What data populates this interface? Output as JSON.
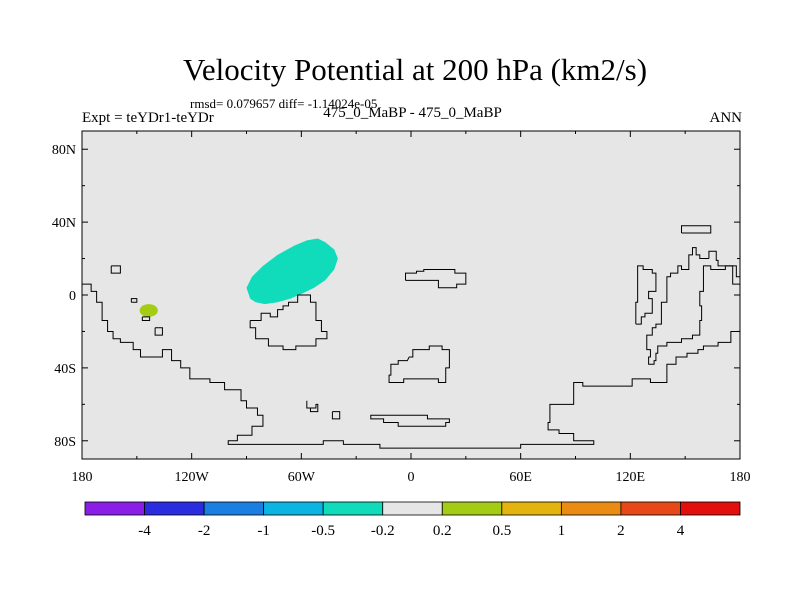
{
  "chart_data": {
    "type": "map-contour",
    "title": "Velocity Potential at 200 hPa (km2/s)",
    "stats_line": "rmsd= 0.079657 diff= -1.14024e-05",
    "left_label": "Expt = teYDr1-teYDr",
    "center_label": "475_0_MaBP - 475_0_MaBP",
    "right_label": "ANN",
    "projection": "cylindrical-equidistant",
    "xlim": [
      -180,
      180
    ],
    "ylim": [
      -90,
      90
    ],
    "x_ticks": [
      {
        "value": -180,
        "label": "180"
      },
      {
        "value": -120,
        "label": "120W"
      },
      {
        "value": -60,
        "label": "60W"
      },
      {
        "value": 0,
        "label": "0"
      },
      {
        "value": 60,
        "label": "60E"
      },
      {
        "value": 120,
        "label": "120E"
      },
      {
        "value": 180,
        "label": "180"
      }
    ],
    "y_ticks": [
      {
        "value": 80,
        "label": "80N"
      },
      {
        "value": 40,
        "label": "40N"
      },
      {
        "value": 0,
        "label": "0"
      },
      {
        "value": -40,
        "label": "40S"
      },
      {
        "value": -80,
        "label": "80S"
      }
    ],
    "background_color": "#e6e6e6",
    "anomaly_regions": [
      {
        "name": "",
        "bin": "-0.5 to -0.2",
        "color": "#10dcbc",
        "polygon": [
          [
            -88,
            -2
          ],
          [
            -90,
            4
          ],
          [
            -87,
            10
          ],
          [
            -81,
            16
          ],
          [
            -73,
            22
          ],
          [
            -64,
            27
          ],
          [
            -57,
            30
          ],
          [
            -51,
            31
          ],
          [
            -47,
            29
          ],
          [
            -42,
            25
          ],
          [
            -40,
            20
          ],
          [
            -42,
            14
          ],
          [
            -47,
            8
          ],
          [
            -53,
            4
          ],
          [
            -59,
            1
          ],
          [
            -66,
            -2
          ],
          [
            -73,
            -4
          ],
          [
            -80,
            -5
          ],
          [
            -85,
            -4
          ]
        ]
      },
      {
        "name": "",
        "bin": "0.2 to 0.5",
        "color": "#a5cc14",
        "ellipse": {
          "cx": -143.5,
          "cy": -8.5,
          "rx": 5,
          "ry": 3.5
        }
      }
    ],
    "colorbar": {
      "colors": [
        "#8a1de6",
        "#2b2be0",
        "#1a7fe0",
        "#0ab4e3",
        "#10dcbc",
        "#e6e6e6",
        "#a5cc14",
        "#e4b40e",
        "#ea8c14",
        "#e64818",
        "#e30e0e"
      ],
      "tick_labels": [
        "-4",
        "-2",
        "-1",
        "-0.5",
        "-0.2",
        "0.2",
        "0.5",
        "1",
        "2",
        "4"
      ]
    },
    "coastlines": [
      [
        [
          -180,
          6
        ],
        [
          -175,
          6
        ],
        [
          -175,
          2
        ],
        [
          -172,
          2
        ],
        [
          -172,
          -4
        ],
        [
          -169,
          -4
        ],
        [
          -169,
          -14
        ],
        [
          -166,
          -14
        ],
        [
          -166,
          -20
        ],
        [
          -163,
          -20
        ],
        [
          -163,
          -24
        ],
        [
          -159,
          -24
        ],
        [
          -159,
          -26
        ],
        [
          -152,
          -26
        ],
        [
          -152,
          -30
        ],
        [
          -148,
          -30
        ],
        [
          -148,
          -34
        ],
        [
          -136,
          -34
        ],
        [
          -136,
          -30
        ],
        [
          -131,
          -30
        ],
        [
          -131,
          -36
        ],
        [
          -126,
          -36
        ],
        [
          -126,
          -40
        ],
        [
          -121,
          -40
        ],
        [
          -121,
          -46
        ],
        [
          -110,
          -46
        ],
        [
          -110,
          -48
        ],
        [
          -102,
          -48
        ],
        [
          -102,
          -52
        ],
        [
          -93,
          -52
        ],
        [
          -93,
          -58
        ],
        [
          -90,
          -58
        ],
        [
          -90,
          -62
        ],
        [
          -84,
          -62
        ],
        [
          -84,
          -66
        ],
        [
          -81,
          -66
        ],
        [
          -81,
          -72
        ],
        [
          -87,
          -72
        ],
        [
          -87,
          -77
        ],
        [
          -95,
          -77
        ],
        [
          -95,
          -80
        ],
        [
          -100,
          -80
        ],
        [
          -100,
          -82
        ],
        [
          -48,
          -82
        ],
        [
          -48,
          -80
        ],
        [
          -37,
          -80
        ],
        [
          -37,
          -82
        ],
        [
          -17,
          -82
        ],
        [
          -17,
          -84
        ],
        [
          60,
          -84
        ],
        [
          60,
          -82
        ],
        [
          100,
          -82
        ],
        [
          100,
          -80
        ],
        [
          89,
          -80
        ],
        [
          89,
          -76
        ],
        [
          81,
          -76
        ],
        [
          81,
          -74
        ],
        [
          75,
          -74
        ],
        [
          75,
          -70
        ],
        [
          76,
          -70
        ],
        [
          76,
          -60
        ],
        [
          89,
          -60
        ],
        [
          89,
          -48
        ],
        [
          94,
          -48
        ],
        [
          94,
          -50
        ],
        [
          121,
          -50
        ],
        [
          121,
          -46
        ],
        [
          131,
          -46
        ],
        [
          131,
          -48
        ],
        [
          140,
          -48
        ],
        [
          140,
          -38
        ],
        [
          145,
          -38
        ],
        [
          145,
          -34
        ],
        [
          151,
          -34
        ],
        [
          151,
          -32
        ],
        [
          157,
          -32
        ],
        [
          157,
          -30
        ],
        [
          160,
          -30
        ],
        [
          160,
          -28
        ],
        [
          168,
          -28
        ],
        [
          168,
          -26
        ],
        [
          175,
          -26
        ],
        [
          175,
          -20
        ],
        [
          180,
          -20
        ]
      ],
      [
        [
          -88,
          -14
        ],
        [
          -88,
          -18
        ],
        [
          -85,
          -18
        ],
        [
          -85,
          -24
        ],
        [
          -78,
          -24
        ],
        [
          -78,
          -28
        ],
        [
          -70,
          -28
        ],
        [
          -70,
          -30
        ],
        [
          -63,
          -30
        ],
        [
          -63,
          -28
        ],
        [
          -52,
          -28
        ],
        [
          -52,
          -24
        ],
        [
          -46,
          -24
        ],
        [
          -46,
          -20
        ],
        [
          -49,
          -20
        ],
        [
          -49,
          -14
        ],
        [
          -52,
          -14
        ],
        [
          -52,
          -4
        ],
        [
          -55,
          -4
        ],
        [
          -55,
          0
        ],
        [
          -62,
          0
        ],
        [
          -62,
          -4
        ],
        [
          -67,
          -4
        ],
        [
          -67,
          -6
        ],
        [
          -70,
          -6
        ],
        [
          -70,
          -8
        ],
        [
          -73,
          -8
        ],
        [
          -73,
          -12
        ],
        [
          -77,
          -12
        ],
        [
          -77,
          -10
        ],
        [
          -82,
          -10
        ],
        [
          -82,
          -14
        ],
        [
          -88,
          -14
        ]
      ],
      [
        [
          -3,
          8
        ],
        [
          -3,
          12
        ],
        [
          3,
          12
        ],
        [
          3,
          13
        ],
        [
          7,
          13
        ],
        [
          7,
          14
        ],
        [
          24,
          14
        ],
        [
          24,
          12
        ],
        [
          30,
          12
        ],
        [
          30,
          6
        ],
        [
          25,
          6
        ],
        [
          25,
          4
        ],
        [
          15,
          4
        ],
        [
          15,
          8
        ],
        [
          -3,
          8
        ]
      ],
      [
        [
          -1,
          -34
        ],
        [
          -2,
          -36
        ],
        [
          -7,
          -36
        ],
        [
          -7,
          -38
        ],
        [
          -11,
          -38
        ],
        [
          -11,
          -44
        ],
        [
          -12,
          -44
        ],
        [
          -12,
          -48
        ],
        [
          -4,
          -48
        ],
        [
          -4,
          -46
        ],
        [
          15,
          -46
        ],
        [
          15,
          -48
        ],
        [
          19,
          -48
        ],
        [
          19,
          -40
        ],
        [
          21,
          -40
        ],
        [
          21,
          -30
        ],
        [
          17,
          -30
        ],
        [
          17,
          -28
        ],
        [
          10,
          -28
        ],
        [
          10,
          -30
        ],
        [
          1,
          -30
        ],
        [
          1,
          -34
        ],
        [
          -1,
          -34
        ]
      ],
      [
        [
          -13,
          -66
        ],
        [
          -22,
          -66
        ],
        [
          -22,
          -68
        ],
        [
          -15,
          -68
        ],
        [
          -15,
          -70
        ],
        [
          -7,
          -70
        ],
        [
          -7,
          -72
        ],
        [
          19,
          -72
        ],
        [
          19,
          -70
        ],
        [
          21,
          -70
        ],
        [
          21,
          -68
        ],
        [
          9,
          -68
        ],
        [
          9,
          -66
        ],
        [
          -13,
          -66
        ]
      ],
      [
        [
          123,
          -16
        ],
        [
          123,
          -4
        ],
        [
          124,
          -4
        ],
        [
          124,
          16
        ],
        [
          127,
          16
        ],
        [
          127,
          14
        ],
        [
          132,
          14
        ],
        [
          132,
          12
        ],
        [
          134,
          12
        ],
        [
          134,
          2
        ],
        [
          130,
          2
        ],
        [
          130,
          -2
        ],
        [
          132,
          -2
        ],
        [
          132,
          -10
        ],
        [
          128,
          -10
        ],
        [
          128,
          -12
        ],
        [
          126,
          -12
        ],
        [
          126,
          -16
        ],
        [
          123,
          -16
        ]
      ],
      [
        [
          148,
          34
        ],
        [
          148,
          38
        ],
        [
          164,
          38
        ],
        [
          164,
          34
        ],
        [
          148,
          34
        ]
      ],
      [
        [
          163,
          20
        ],
        [
          163,
          24
        ],
        [
          167,
          24
        ],
        [
          167,
          19
        ],
        [
          168,
          19
        ],
        [
          168,
          16
        ],
        [
          178,
          16
        ],
        [
          178,
          10
        ],
        [
          180,
          10
        ]
      ],
      [
        [
          180,
          6
        ],
        [
          176,
          6
        ],
        [
          176,
          16
        ],
        [
          172,
          16
        ],
        [
          172,
          14
        ],
        [
          164,
          14
        ],
        [
          164,
          16
        ],
        [
          160,
          16
        ],
        [
          160,
          2
        ],
        [
          158,
          2
        ],
        [
          158,
          -6
        ],
        [
          159,
          -6
        ],
        [
          159,
          -14
        ],
        [
          158,
          -14
        ],
        [
          158,
          -22
        ],
        [
          154,
          -22
        ],
        [
          154,
          -24
        ],
        [
          148,
          -24
        ],
        [
          148,
          -26
        ],
        [
          140,
          -26
        ],
        [
          140,
          -28
        ],
        [
          135,
          -28
        ],
        [
          135,
          -32
        ],
        [
          134,
          -32
        ],
        [
          134,
          -36
        ],
        [
          133,
          -36
        ],
        [
          133,
          -38
        ],
        [
          130,
          -38
        ],
        [
          130,
          -34
        ],
        [
          131,
          -34
        ],
        [
          131,
          -30
        ],
        [
          129,
          -30
        ],
        [
          129,
          -22
        ],
        [
          132,
          -22
        ],
        [
          132,
          -18
        ],
        [
          134,
          -18
        ],
        [
          134,
          -16
        ],
        [
          137,
          -16
        ],
        [
          137,
          -4
        ],
        [
          140,
          -4
        ],
        [
          140,
          10
        ],
        [
          142,
          10
        ],
        [
          142,
          12
        ],
        [
          146,
          12
        ],
        [
          146,
          16
        ],
        [
          148,
          16
        ],
        [
          148,
          14
        ],
        [
          152,
          14
        ],
        [
          152,
          22
        ],
        [
          154,
          22
        ],
        [
          154,
          26
        ],
        [
          156,
          26
        ],
        [
          156,
          22
        ],
        [
          158,
          22
        ],
        [
          158,
          20
        ],
        [
          163,
          20
        ]
      ],
      [
        [
          -164,
          16
        ],
        [
          -164,
          12
        ],
        [
          -159,
          12
        ],
        [
          -159,
          16
        ],
        [
          -164,
          16
        ]
      ],
      [
        [
          -153,
          -4
        ],
        [
          -153,
          -2
        ],
        [
          -150,
          -2
        ],
        [
          -150,
          -4
        ],
        [
          -153,
          -4
        ]
      ],
      [
        [
          -147,
          -12
        ],
        [
          -147,
          -14
        ],
        [
          -143,
          -14
        ],
        [
          -143,
          -12
        ],
        [
          -147,
          -12
        ]
      ],
      [
        [
          -140,
          -18
        ],
        [
          -140,
          -22
        ],
        [
          -136,
          -22
        ],
        [
          -136,
          -18
        ],
        [
          -140,
          -18
        ]
      ],
      [
        [
          -57,
          -58
        ],
        [
          -57,
          -62
        ],
        [
          -52,
          -62
        ],
        [
          -52,
          -60
        ],
        [
          -51,
          -60
        ],
        [
          -51,
          -64
        ],
        [
          -55,
          -64
        ],
        [
          -55,
          -62
        ],
        [
          -57,
          -62
        ]
      ],
      [
        [
          -43,
          -64
        ],
        [
          -43,
          -68
        ],
        [
          -39,
          -68
        ],
        [
          -39,
          -64
        ],
        [
          -43,
          -64
        ]
      ]
    ]
  }
}
